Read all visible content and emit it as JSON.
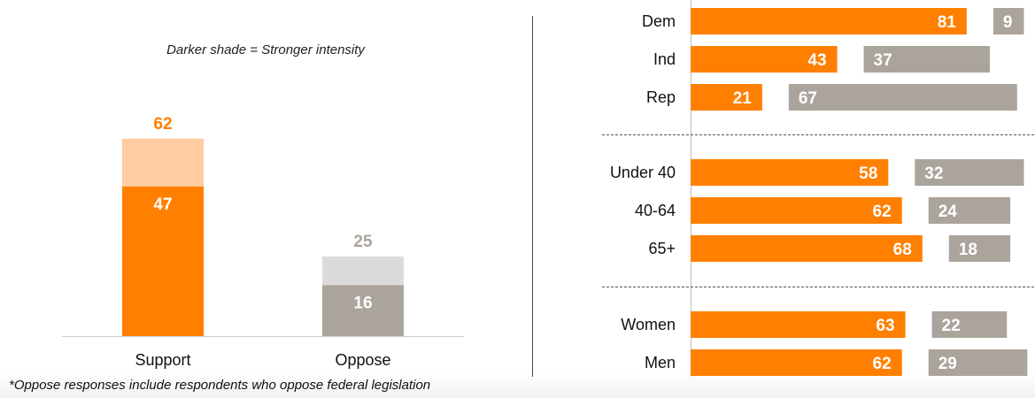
{
  "note": "Darker shade = Stronger intensity",
  "footnote": "*Oppose responses include respondents who oppose federal legislation",
  "colors": {
    "orange": "#ff7f00",
    "light_orange": "#ffcda1",
    "gray": "#aba49c",
    "light_gray": "#dddbd9",
    "total_gray_label": "#aba49c"
  },
  "chart_data": [
    {
      "type": "bar",
      "stacked": true,
      "categories": [
        "Support",
        "Oppose"
      ],
      "series": [
        {
          "name": "",
          "values": [
            47,
            16
          ]
        }
      ],
      "totals": [
        62,
        25
      ],
      "ylim": [
        0,
        70
      ]
    },
    {
      "type": "bar",
      "orientation": "horizontal",
      "groups": [
        {
          "rows": [
            {
              "label": "Dem",
              "support": 81,
              "oppose": 9
            },
            {
              "label": "Ind",
              "support": 43,
              "oppose": 37
            },
            {
              "label": "Rep",
              "support": 21,
              "oppose": 67
            }
          ]
        },
        {
          "rows": [
            {
              "label": "Under 40",
              "support": 58,
              "oppose": 32
            },
            {
              "label": "40-64",
              "support": 62,
              "oppose": 24
            },
            {
              "label": "65+",
              "support": 68,
              "oppose": 18
            }
          ]
        },
        {
          "rows": [
            {
              "label": "Women",
              "support": 63,
              "oppose": 22
            },
            {
              "label": "Men",
              "support": 62,
              "oppose": 29
            }
          ]
        }
      ],
      "xlim": [
        0,
        100
      ]
    }
  ]
}
